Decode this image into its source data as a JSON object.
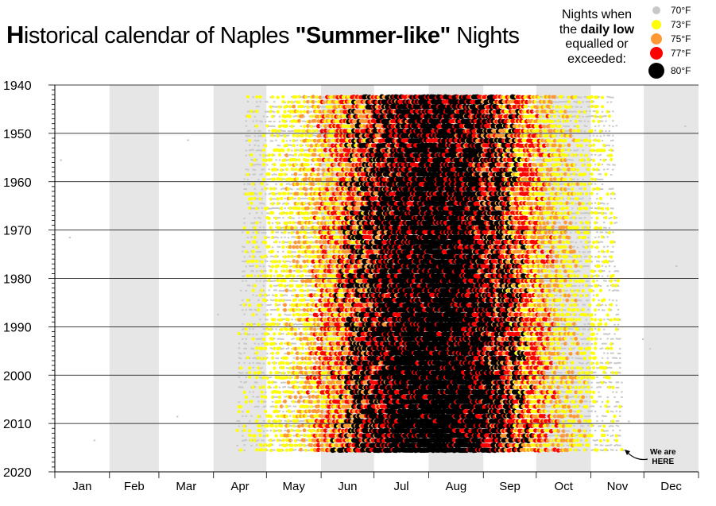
{
  "title": {
    "first_letter": "H",
    "part1": "istorical calendar of Naples ",
    "bold_part": "\"Summer-like\"",
    "part2": " Nights"
  },
  "legend": {
    "text_line1": "Nights when",
    "text_line2_pre": "the ",
    "text_line2_bold": "daily low",
    "text_line3": "equalled or",
    "text_line4": "exceeded:",
    "items": [
      {
        "label": "70°F",
        "color": "#c8c8c8"
      },
      {
        "label": "73°F",
        "color": "#ffff00"
      },
      {
        "label": "75°F",
        "color": "#ff9933"
      },
      {
        "label": "77°F",
        "color": "#ff0000"
      },
      {
        "label": "80°F",
        "color": "#000000"
      }
    ]
  },
  "annotation": {
    "text": "We are\nHERE"
  },
  "chart_data": {
    "type": "scatter",
    "x_axis": {
      "categories": [
        "Jan",
        "Feb",
        "Mar",
        "Apr",
        "May",
        "Jun",
        "Jul",
        "Aug",
        "Sep",
        "Oct",
        "Nov",
        "Dec"
      ]
    },
    "y_axis": {
      "ticks": [
        "1940",
        "1950",
        "1960",
        "1970",
        "1980",
        "1990",
        "2000",
        "2010",
        "2020"
      ],
      "range": [
        1940,
        2020
      ],
      "reversed": true
    },
    "data_range_years": [
      1942,
      2015
    ],
    "grid": "horizontal at each decade; alternating shaded month bands (Feb, Apr, Jun, Aug, Oct, Dec)",
    "series": [
      {
        "name": "70°F",
        "color": "#c8c8c8"
      },
      {
        "name": "73°F",
        "color": "#ffff00"
      },
      {
        "name": "75°F",
        "color": "#ff9933"
      },
      {
        "name": "77°F",
        "color": "#ff0000"
      },
      {
        "name": "80°F",
        "color": "#000000"
      }
    ],
    "dot_density_by_day_of_year_note_free": true
  }
}
